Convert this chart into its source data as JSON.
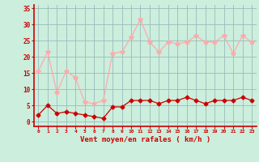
{
  "x": [
    0,
    1,
    2,
    3,
    4,
    5,
    6,
    7,
    8,
    9,
    10,
    11,
    12,
    13,
    14,
    15,
    16,
    17,
    18,
    19,
    20,
    21,
    22,
    23
  ],
  "wind_avg": [
    2,
    5,
    2.5,
    3,
    2.5,
    2,
    1.5,
    1,
    4.5,
    4.5,
    6.5,
    6.5,
    6.5,
    5.5,
    6.5,
    6.5,
    7.5,
    6.5,
    5.5,
    6.5,
    6.5,
    6.5,
    7.5,
    6.5
  ],
  "wind_gust": [
    15.5,
    21.5,
    9,
    15.5,
    13.5,
    6,
    5.5,
    6.5,
    21,
    21.5,
    26,
    31.5,
    24.5,
    21.5,
    24.5,
    24,
    24.5,
    26.5,
    24.5,
    24.5,
    26.5,
    21,
    26.5,
    24.5
  ],
  "avg_color": "#cc0000",
  "gust_color": "#ffaaaa",
  "bg_color": "#cceedd",
  "grid_color": "#99bbbb",
  "xlabel": "Vent moyen/en rafales ( km/h )",
  "ylabel_ticks": [
    0,
    5,
    10,
    15,
    20,
    25,
    30,
    35
  ],
  "ylim": [
    -1.5,
    36
  ],
  "xlim": [
    -0.5,
    23.5
  ],
  "xlabel_color": "#cc0000",
  "tick_color": "#cc0000",
  "spine_color": "#cc0000"
}
